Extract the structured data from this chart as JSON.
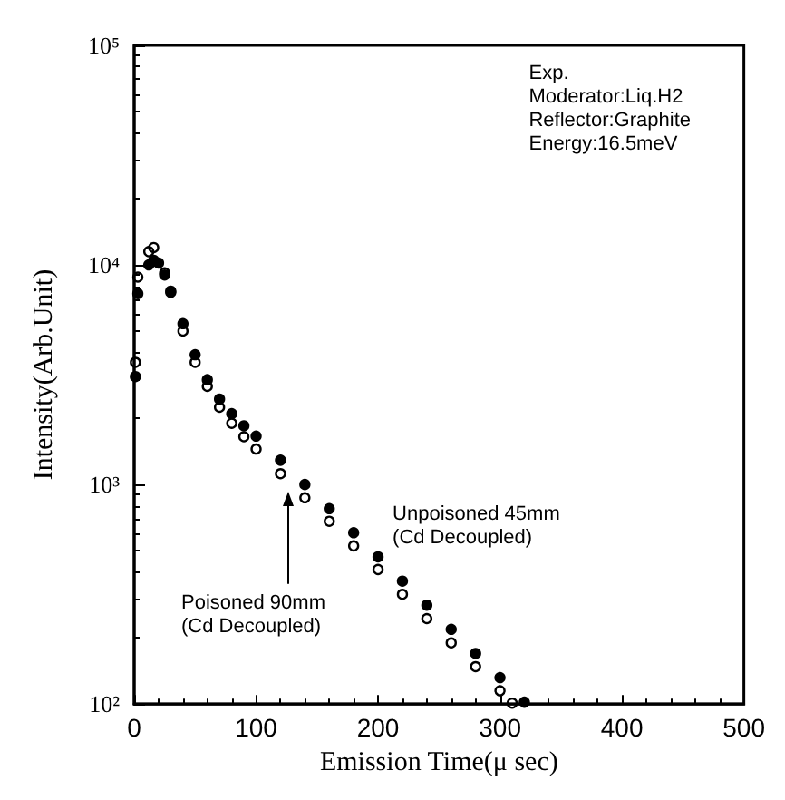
{
  "chart_data": {
    "type": "scatter",
    "xlabel": "Emission Time(μ sec)",
    "ylabel": "Intensity(Arb.Unit)",
    "xlim": [
      0,
      500
    ],
    "xticks": [
      0,
      100,
      200,
      300,
      400,
      500
    ],
    "ylim": [
      100,
      100000
    ],
    "yticks": [
      {
        "value": 100,
        "label": "10²"
      },
      {
        "value": 1000,
        "label": "10³"
      },
      {
        "value": 10000,
        "label": "10⁴"
      },
      {
        "value": 100000,
        "label": "10⁵"
      }
    ],
    "log": "y",
    "grid": false,
    "legend": false,
    "marker": "circle",
    "annotations": [
      "Exp.\nModerator:Liq.H2\nReflector:Graphite\nEnergy:16.5meV"
    ],
    "series": [
      {
        "name": "Unpoisoned 45mm\n(Cd Decoupled)",
        "color": "#000000",
        "x": [
          1,
          3,
          12,
          16,
          20,
          25,
          30,
          40,
          50,
          60,
          70,
          80,
          90,
          100,
          120,
          140,
          160,
          180,
          200,
          220,
          240,
          260,
          280,
          300,
          320
        ],
        "values": [
          3100,
          7400,
          10000,
          10500,
          10200,
          9000,
          7600,
          5400,
          3900,
          3000,
          2450,
          2100,
          1850,
          1660,
          1290,
          1000,
          776,
          603,
          468,
          363,
          282,
          219,
          170,
          132,
          102
        ]
      },
      {
        "name": "Poisoned 90mm\n(Cd Decoupled)",
        "color": "#000000",
        "x": [
          1,
          3,
          12,
          16,
          25,
          30,
          40,
          50,
          60,
          70,
          80,
          90,
          100,
          120,
          140,
          160,
          180,
          200,
          220,
          240,
          260,
          280,
          300,
          310
        ],
        "values": [
          3600,
          8800,
          11500,
          12000,
          9200,
          7500,
          5000,
          3600,
          2800,
          2250,
          1900,
          1650,
          1450,
          1120,
          870,
          680,
          525,
          410,
          316,
          245,
          190,
          148,
          115,
          101
        ]
      }
    ]
  }
}
